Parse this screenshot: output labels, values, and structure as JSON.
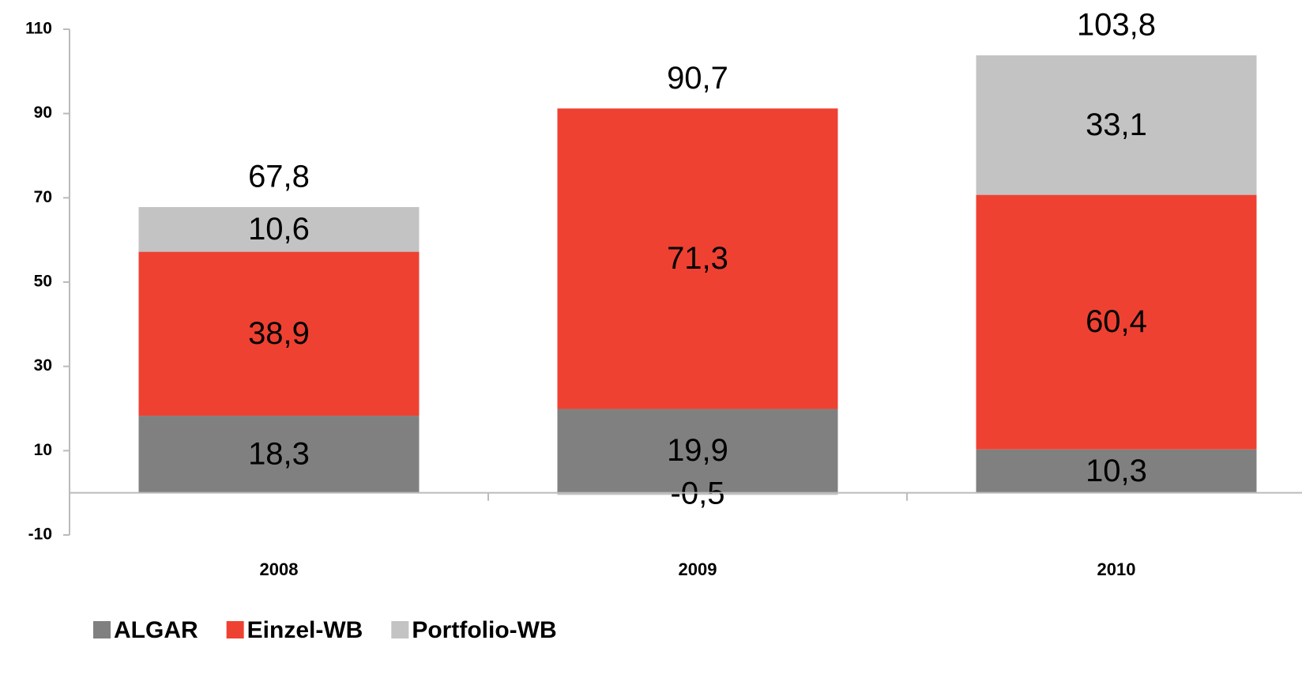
{
  "chart_data": {
    "type": "stacked_bar",
    "categories": [
      "2008",
      "2009",
      "2010"
    ],
    "series": [
      {
        "name": "ALGAR",
        "color": "#808080",
        "values": [
          18.3,
          19.9,
          10.3
        ],
        "value_labels": [
          "18,3",
          "19,9",
          "10,3"
        ]
      },
      {
        "name": "Einzel-WB",
        "color": "#ee4132",
        "values": [
          38.9,
          71.3,
          60.4
        ],
        "value_labels": [
          "38,9",
          "71,3",
          "60,4"
        ]
      },
      {
        "name": "Portfolio-WB",
        "color": "#c3c3c3",
        "values": [
          10.6,
          -0.5,
          33.1
        ],
        "value_labels": [
          "10,6",
          "-0,5",
          "33,1"
        ]
      }
    ],
    "totals": {
      "values": [
        67.8,
        90.7,
        103.8
      ],
      "value_labels": [
        "67,8",
        "90,7",
        "103,8"
      ]
    },
    "ylim": [
      -10,
      110
    ],
    "yticks": [
      -10,
      10,
      30,
      50,
      70,
      90,
      110
    ],
    "legend": "bottom-left"
  }
}
